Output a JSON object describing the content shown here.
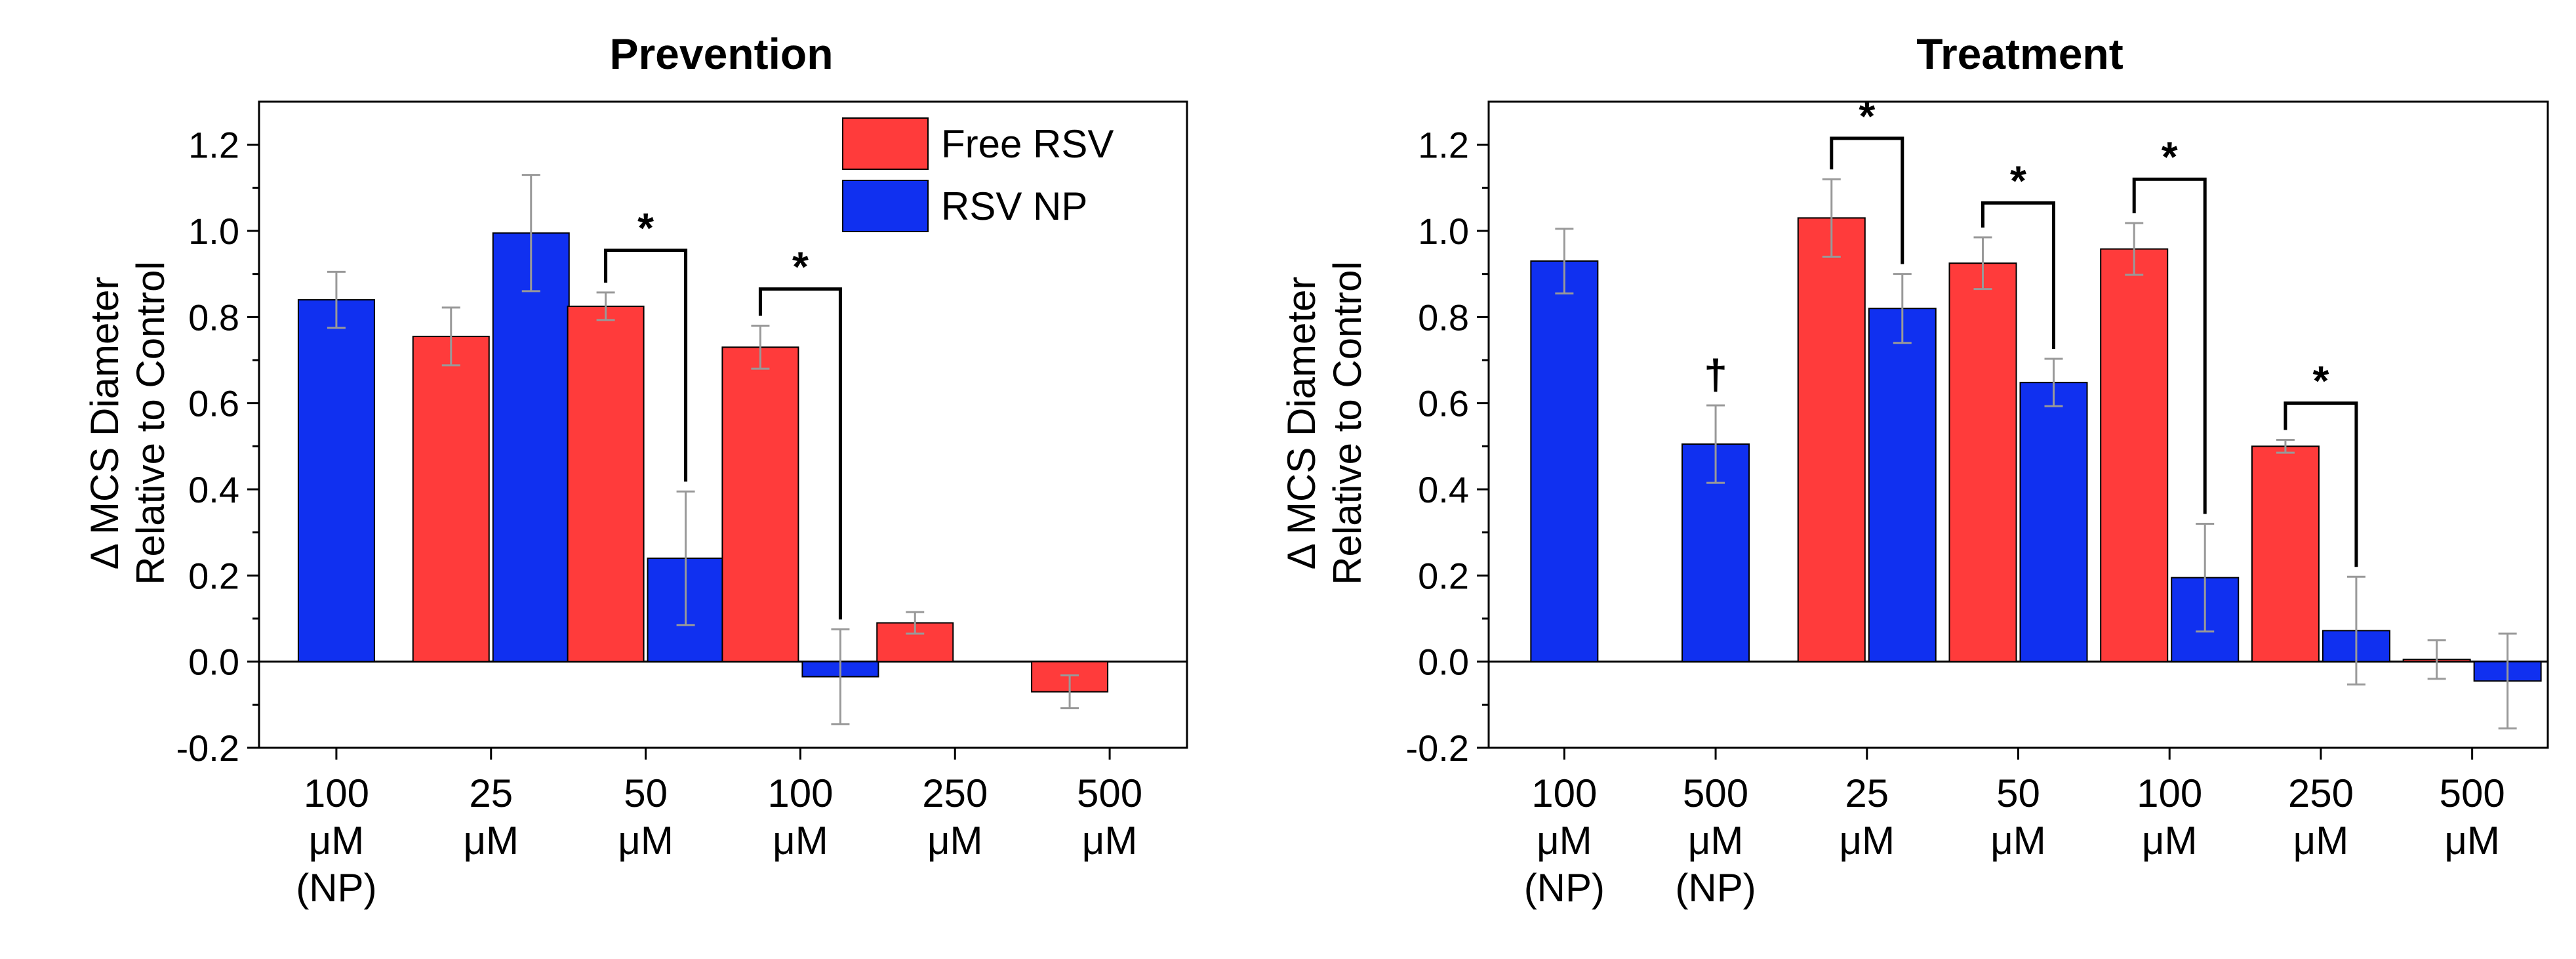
{
  "colors": {
    "free": "#ff3b3b",
    "np": "#1030f0",
    "errorbar": "#999999"
  },
  "legend": {
    "free": "Free RSV",
    "np": "RSV NP"
  },
  "y_ticks": [
    "-0.2",
    "0.0",
    "0.2",
    "0.4",
    "0.6",
    "0.8",
    "1.0",
    "1.2"
  ],
  "chart_data": [
    {
      "type": "bar",
      "title": "Prevention",
      "ylabel_line1": "Δ MCS Diameter",
      "ylabel_line2": "Relative to Control",
      "ylim": [
        -0.2,
        1.3
      ],
      "legend_position": "top-right",
      "categories": [
        [
          "100",
          "μM",
          "(NP)"
        ],
        [
          "25",
          "μM"
        ],
        [
          "50",
          "μM"
        ],
        [
          "100",
          "μM"
        ],
        [
          "250",
          "μM"
        ],
        [
          "500",
          "μM"
        ]
      ],
      "bars": [
        {
          "group": 0,
          "series": "np",
          "value": 0.84,
          "err": 0.065,
          "slot": "center"
        },
        {
          "group": 1,
          "series": "free",
          "value": 0.755,
          "err": 0.067,
          "slot": "left"
        },
        {
          "group": 1,
          "series": "np",
          "value": 0.995,
          "err": 0.135,
          "slot": "right"
        },
        {
          "group": 2,
          "series": "free",
          "value": 0.825,
          "err": 0.032,
          "slot": "left"
        },
        {
          "group": 2,
          "series": "np",
          "value": 0.24,
          "err": 0.155,
          "slot": "right"
        },
        {
          "group": 3,
          "series": "free",
          "value": 0.73,
          "err": 0.05,
          "slot": "left"
        },
        {
          "group": 3,
          "series": "np",
          "value": -0.035,
          "err": 0.11,
          "slot": "right"
        },
        {
          "group": 4,
          "series": "free",
          "value": 0.09,
          "err": 0.025,
          "slot": "left"
        },
        {
          "group": 5,
          "series": "free",
          "value": -0.07,
          "err": 0.038,
          "slot": "left"
        }
      ],
      "annotations": [
        {
          "type": "sig",
          "label": "*",
          "from": 3,
          "to": 4,
          "height": 0.955
        },
        {
          "type": "sig",
          "label": "*",
          "from": 5,
          "to": 6,
          "height": 0.865
        }
      ]
    },
    {
      "type": "bar",
      "title": "Treatment",
      "ylabel_line1": "Δ MCS Diameter",
      "ylabel_line2": "Relative to Control",
      "ylim": [
        -0.2,
        1.3
      ],
      "categories": [
        [
          "100",
          "μM",
          "(NP)"
        ],
        [
          "500",
          "μM",
          "(NP)"
        ],
        [
          "25",
          "μM"
        ],
        [
          "50",
          "μM"
        ],
        [
          "100",
          "μM"
        ],
        [
          "250",
          "μM"
        ],
        [
          "500",
          "μM"
        ]
      ],
      "bars": [
        {
          "group": 0,
          "series": "np",
          "value": 0.93,
          "err": 0.075,
          "slot": "center"
        },
        {
          "group": 1,
          "series": "np",
          "value": 0.505,
          "err": 0.09,
          "slot": "center"
        },
        {
          "group": 2,
          "series": "free",
          "value": 1.03,
          "err": 0.09,
          "slot": "left"
        },
        {
          "group": 2,
          "series": "np",
          "value": 0.82,
          "err": 0.08,
          "slot": "right"
        },
        {
          "group": 3,
          "series": "free",
          "value": 0.925,
          "err": 0.06,
          "slot": "left"
        },
        {
          "group": 3,
          "series": "np",
          "value": 0.648,
          "err": 0.055,
          "slot": "right"
        },
        {
          "group": 4,
          "series": "free",
          "value": 0.958,
          "err": 0.06,
          "slot": "left"
        },
        {
          "group": 4,
          "series": "np",
          "value": 0.195,
          "err": 0.125,
          "slot": "right"
        },
        {
          "group": 5,
          "series": "free",
          "value": 0.5,
          "err": 0.015,
          "slot": "left"
        },
        {
          "group": 5,
          "series": "np",
          "value": 0.072,
          "err": 0.125,
          "slot": "right"
        },
        {
          "group": 6,
          "series": "free",
          "value": 0.005,
          "err": 0.045,
          "slot": "left"
        },
        {
          "group": 6,
          "series": "np",
          "value": -0.045,
          "err": 0.11,
          "slot": "right"
        }
      ],
      "annotations": [
        {
          "type": "dagger",
          "label": "†",
          "bar": 1
        },
        {
          "type": "sig",
          "label": "*",
          "from": 2,
          "to": 3,
          "height": 1.215
        },
        {
          "type": "sig",
          "label": "*",
          "from": 4,
          "to": 5,
          "height": 1.065
        },
        {
          "type": "sig",
          "label": "*",
          "from": 6,
          "to": 7,
          "height": 1.12
        },
        {
          "type": "sig",
          "label": "*",
          "from": 8,
          "to": 9,
          "height": 0.6
        }
      ]
    }
  ]
}
